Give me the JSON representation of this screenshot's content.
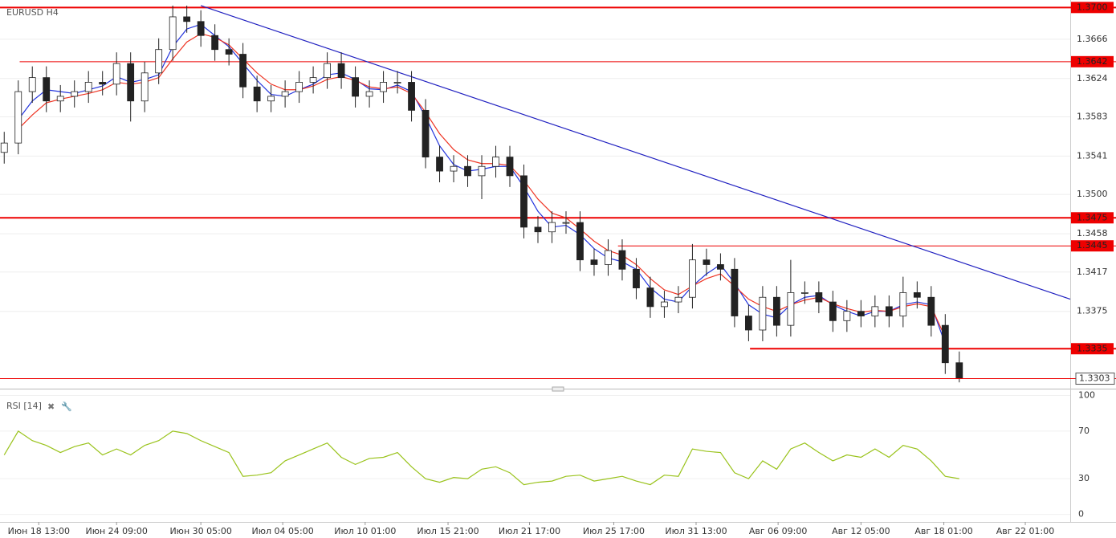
{
  "chart_data": [
    {
      "type": "candlestick",
      "title": "EURUSD H4",
      "xlim": [
        -0.3,
        75.9
      ],
      "ylim": [
        1.3294,
        1.3708
      ],
      "yticks": [
        1.3666,
        1.3624,
        1.3583,
        1.3541,
        {
          "value": 1.35,
          "label": "1.3500"
        },
        1.3458,
        1.3417,
        1.3375
      ],
      "xticks": [
        {
          "value": 2.46,
          "label": "Июн 18 13:00"
        },
        {
          "value": 8,
          "label": "Июн 24 09:00"
        },
        {
          "value": 14,
          "label": "Июн 30 05:00"
        },
        {
          "value": 19.83,
          "label": "Июл 04 05:00"
        },
        {
          "value": 25.7,
          "label": "Июл 10 01:00"
        },
        {
          "value": 31.6,
          "label": "Июл 15 21:00"
        },
        {
          "value": 37.4,
          "label": "Июл 21 17:00"
        },
        {
          "value": 43.4,
          "label": "Июл 25 17:00"
        },
        {
          "value": 49.26,
          "label": "Июл 31 13:00"
        },
        {
          "value": 55.1,
          "label": "Авг 06 09:00"
        },
        {
          "value": 61,
          "label": "Авг 12 05:00"
        },
        {
          "value": 66.9,
          "label": "Авг 18 01:00"
        },
        {
          "value": 72.7,
          "label": "Авг 22 01:00"
        }
      ],
      "grid": true,
      "open": [
        1.3545,
        1.3555,
        1.361,
        1.3625,
        1.36,
        1.3605,
        1.361,
        1.362,
        1.3618,
        1.364,
        1.36,
        1.363,
        1.3655,
        1.369,
        1.3685,
        1.367,
        1.3655,
        1.365,
        1.3615,
        1.36,
        1.3605,
        1.361,
        1.362,
        1.3625,
        1.364,
        1.3625,
        1.3605,
        1.361,
        1.362,
        1.362,
        1.359,
        1.354,
        1.3525,
        1.353,
        1.352,
        1.353,
        1.354,
        1.352,
        1.3465,
        1.346,
        1.347,
        1.347,
        1.343,
        1.3425,
        1.344,
        1.342,
        1.34,
        1.338,
        1.3385,
        1.339,
        1.343,
        1.3425,
        1.342,
        1.337,
        1.3355,
        1.339,
        1.336,
        1.3395,
        1.3395,
        1.3385,
        1.3365,
        1.3375,
        1.337,
        1.338,
        1.337,
        1.3395,
        1.339,
        1.336,
        1.332
      ],
      "high": [
        1.3567,
        1.3622,
        1.3637,
        1.3637,
        1.3617,
        1.3622,
        1.3632,
        1.3632,
        1.3652,
        1.3652,
        1.3642,
        1.3667,
        1.3702,
        1.3702,
        1.3697,
        1.3682,
        1.3667,
        1.3662,
        1.3627,
        1.3617,
        1.3622,
        1.3632,
        1.3637,
        1.3652,
        1.3652,
        1.3637,
        1.3622,
        1.3632,
        1.3632,
        1.3632,
        1.3602,
        1.3552,
        1.3542,
        1.3542,
        1.3542,
        1.3552,
        1.3552,
        1.3532,
        1.3477,
        1.3482,
        1.3482,
        1.3482,
        1.3442,
        1.3452,
        1.3452,
        1.3432,
        1.3412,
        1.3397,
        1.3402,
        1.3447,
        1.3442,
        1.3437,
        1.3432,
        1.3382,
        1.3402,
        1.3402,
        1.343,
        1.3407,
        1.3407,
        1.3397,
        1.3387,
        1.3387,
        1.3392,
        1.3392,
        1.3412,
        1.3407,
        1.3402,
        1.3372,
        1.3332
      ],
      "low": [
        1.3533,
        1.3543,
        1.3598,
        1.3588,
        1.3588,
        1.3593,
        1.3598,
        1.3606,
        1.3606,
        1.3578,
        1.3588,
        1.3618,
        1.3643,
        1.3673,
        1.3658,
        1.3643,
        1.3638,
        1.3603,
        1.3588,
        1.3588,
        1.3593,
        1.3598,
        1.3608,
        1.3613,
        1.3613,
        1.3593,
        1.3593,
        1.3598,
        1.3608,
        1.3578,
        1.3528,
        1.3513,
        1.3513,
        1.3508,
        1.3495,
        1.3518,
        1.3508,
        1.3453,
        1.3448,
        1.3448,
        1.3458,
        1.3418,
        1.3413,
        1.3413,
        1.3408,
        1.3388,
        1.3368,
        1.3368,
        1.3373,
        1.3378,
        1.3413,
        1.3408,
        1.3358,
        1.3343,
        1.3343,
        1.3348,
        1.3348,
        1.3383,
        1.3373,
        1.3353,
        1.3353,
        1.3358,
        1.3358,
        1.3358,
        1.3358,
        1.3378,
        1.3348,
        1.3308,
        1.3299
      ],
      "close": [
        1.3555,
        1.361,
        1.3625,
        1.36,
        1.3605,
        1.361,
        1.362,
        1.3618,
        1.364,
        1.36,
        1.363,
        1.3655,
        1.369,
        1.3685,
        1.367,
        1.3655,
        1.365,
        1.3615,
        1.36,
        1.3605,
        1.361,
        1.362,
        1.3625,
        1.364,
        1.3625,
        1.3605,
        1.361,
        1.362,
        1.362,
        1.359,
        1.354,
        1.3525,
        1.353,
        1.352,
        1.353,
        1.354,
        1.352,
        1.3465,
        1.346,
        1.347,
        1.347,
        1.343,
        1.3425,
        1.344,
        1.342,
        1.34,
        1.338,
        1.3385,
        1.339,
        1.343,
        1.3425,
        1.342,
        1.337,
        1.3355,
        1.339,
        1.336,
        1.3395,
        1.3395,
        1.3385,
        1.3365,
        1.3375,
        1.337,
        1.338,
        1.337,
        1.3395,
        1.339,
        1.336,
        1.332,
        1.3303
      ],
      "overlays": [
        {
          "color": "#2233dd",
          "values": [
            null,
            1.358,
            1.36,
            1.3612,
            1.361,
            1.3608,
            1.3612,
            1.3616,
            1.3626,
            1.362,
            1.3623,
            1.3628,
            1.3658,
            1.3677,
            1.3682,
            1.367,
            1.3658,
            1.364,
            1.3622,
            1.3607,
            1.3605,
            1.3612,
            1.3618,
            1.3628,
            1.363,
            1.3623,
            1.3613,
            1.3612,
            1.3617,
            1.361,
            1.3583,
            1.3552,
            1.3532,
            1.3525,
            1.3527,
            1.353,
            1.353,
            1.3508,
            1.3482,
            1.3465,
            1.3467,
            1.3457,
            1.3442,
            1.3432,
            1.3428,
            1.342,
            1.34,
            1.3388,
            1.3385,
            1.3402,
            1.3415,
            1.3425,
            1.3405,
            1.3382,
            1.3372,
            1.3368,
            1.3382,
            1.339,
            1.3392,
            1.3382,
            1.3375,
            1.337,
            1.3375,
            1.3375,
            1.3382,
            1.3385,
            1.3382,
            1.334,
            null
          ]
        },
        {
          "color": "#ee3322",
          "values": [
            null,
            1.357,
            1.3585,
            1.3598,
            1.3602,
            1.3605,
            1.3608,
            1.3612,
            1.362,
            1.3618,
            1.362,
            1.3625,
            1.3645,
            1.3663,
            1.3672,
            1.3668,
            1.366,
            1.3645,
            1.363,
            1.3618,
            1.3612,
            1.3612,
            1.3616,
            1.3623,
            1.3626,
            1.3622,
            1.3615,
            1.3613,
            1.3615,
            1.3608,
            1.3588,
            1.3565,
            1.3548,
            1.3537,
            1.3533,
            1.3533,
            1.3531,
            1.3515,
            1.3495,
            1.348,
            1.3475,
            1.3463,
            1.345,
            1.344,
            1.3435,
            1.3425,
            1.341,
            1.3398,
            1.3393,
            1.3402,
            1.341,
            1.3415,
            1.3402,
            1.3388,
            1.338,
            1.3375,
            1.3382,
            1.3387,
            1.339,
            1.3383,
            1.3378,
            1.3374,
            1.3376,
            1.3375,
            1.338,
            1.3383,
            1.338,
            1.3347,
            null
          ]
        }
      ],
      "levels": [
        {
          "price": {
            "value": 1.37,
            "label": "1.3700"
          },
          "from": -0.3,
          "width": 2
        },
        {
          "price": 1.3642,
          "from": 1.1,
          "width": 1
        },
        {
          "price": 1.3475,
          "from": -0.3,
          "width": 2
        },
        {
          "price": 1.3445,
          "from": 43.7,
          "width": 1
        },
        {
          "price": 1.3335,
          "from": 53.1,
          "width": 2
        }
      ],
      "level_color": "#ee0000",
      "current": 1.3303,
      "trendline": {
        "x": [
          14,
          75.9
        ],
        "y": [
          1.3702,
          1.3388
        ],
        "color": "#2020c0"
      }
    },
    {
      "type": "line",
      "title": "RSI [14]",
      "color": "#9ac31c",
      "ylim": [
        -5,
        103
      ],
      "yticks": [
        100,
        70,
        30,
        0
      ],
      "values": [
        50,
        70,
        62,
        58,
        52,
        57,
        60,
        50,
        55,
        50,
        58,
        62,
        70,
        68,
        62,
        57,
        52,
        32,
        33,
        35,
        45,
        50,
        55,
        60,
        48,
        42,
        47,
        48,
        52,
        40,
        30,
        27,
        31,
        30,
        38,
        40,
        35,
        25,
        27,
        28,
        32,
        33,
        28,
        30,
        32,
        28,
        25,
        33,
        32,
        55,
        53,
        52,
        35,
        30,
        45,
        38,
        55,
        60,
        52,
        45,
        50,
        48,
        55,
        48,
        58,
        55,
        45,
        32,
        30
      ]
    }
  ]
}
